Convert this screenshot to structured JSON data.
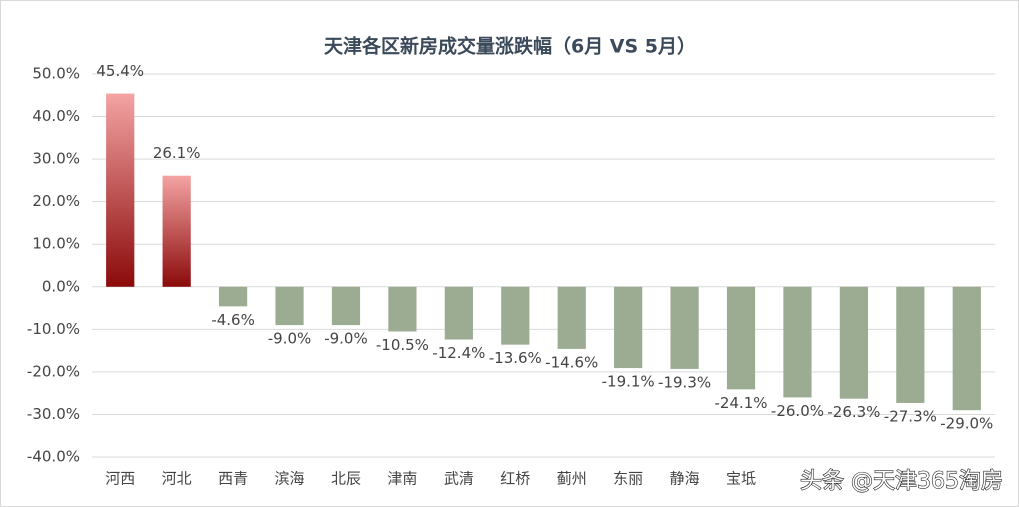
{
  "chart_data": {
    "type": "bar",
    "title": "天津各区新房成交量涨跌幅（6月 VS 5月）",
    "categories": [
      "河西",
      "河北",
      "西青",
      "滨海",
      "北辰",
      "津南",
      "武清",
      "红桥",
      "蓟州",
      "东丽",
      "静海",
      "宝坻",
      null,
      null,
      null,
      null
    ],
    "values": [
      45.4,
      26.1,
      -4.6,
      -9.0,
      -9.0,
      -10.5,
      -12.4,
      -13.6,
      -14.6,
      -19.1,
      -19.3,
      -24.1,
      -26.0,
      -26.3,
      -27.3,
      -29.0
    ],
    "value_labels": [
      "45.4%",
      "26.1%",
      "-4.6%",
      "-9.0%",
      "-9.0%",
      "-10.5%",
      "-12.4%",
      "-13.6%",
      "-14.6%",
      "-19.1%",
      "-19.3%",
      "-24.1%",
      "-26.0%",
      "-26.3%",
      "-27.3%",
      "-29.0%"
    ],
    "positive_colors": [
      "#8b0a0a",
      "#f4a3a3"
    ],
    "color": "#9cac92",
    "ylim": [
      -40,
      50
    ],
    "yticks": [
      {
        "value": -40,
        "label": "-40.0%"
      },
      {
        "value": -30,
        "label": "-30.0%"
      },
      {
        "value": -20,
        "label": "-20.0%"
      },
      {
        "value": -10,
        "label": "-10.0%"
      },
      {
        "value": 0,
        "label": "0.0%"
      },
      {
        "value": 10,
        "label": "10.0%"
      },
      {
        "value": 20,
        "label": "20.0%"
      },
      {
        "value": 30,
        "label": "30.0%"
      },
      {
        "value": 40,
        "label": "40.0%"
      },
      {
        "value": 50,
        "label": "50.0%"
      }
    ],
    "grid": true,
    "annotation": "头条 @天津365淘房"
  }
}
